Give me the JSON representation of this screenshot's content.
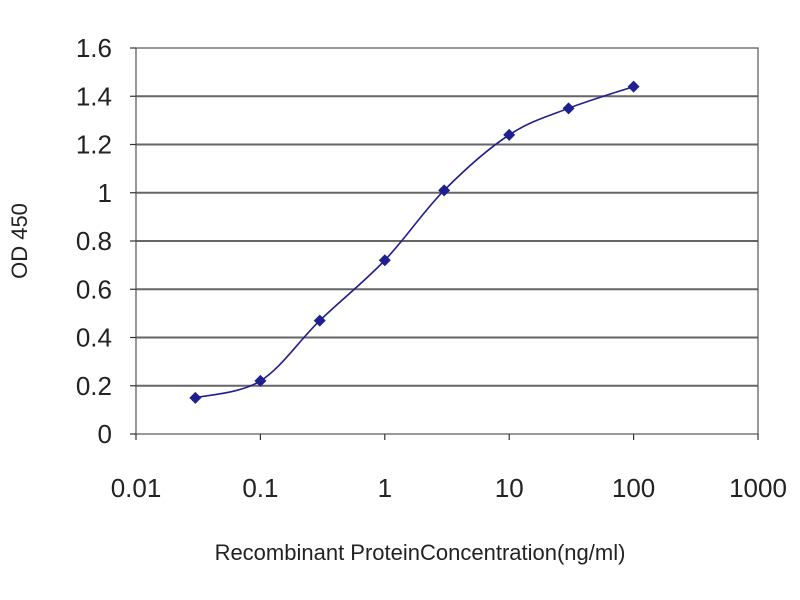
{
  "chart_data": {
    "type": "scatter",
    "title": "",
    "xlabel": "Recombinant ProteinConcentration(ng/ml)",
    "ylabel": "OD 450",
    "x_scale": "log",
    "xlim": [
      0.01,
      1000
    ],
    "ylim": [
      0,
      1.6
    ],
    "x_ticks": [
      0.01,
      0.1,
      1,
      10,
      100,
      1000
    ],
    "x_tick_labels": [
      "0.01",
      "0.1",
      "1",
      "10",
      "100",
      "1000"
    ],
    "y_ticks": [
      0,
      0.2,
      0.4,
      0.6,
      0.8,
      1,
      1.2,
      1.4,
      1.6
    ],
    "y_tick_labels": [
      "0",
      "0.2",
      "0.4",
      "0.6",
      "0.8",
      "1",
      "1.2",
      "1.4",
      "1.6"
    ],
    "grid": "horizontal",
    "legend": "none",
    "series": [
      {
        "x": [
          0.03,
          0.1,
          0.3,
          1,
          3,
          10,
          30,
          100
        ],
        "y": [
          0.15,
          0.22,
          0.47,
          0.72,
          1.01,
          1.24,
          1.35,
          1.44
        ],
        "marker": "diamond",
        "connected": true
      }
    ],
    "colors": {
      "series": "#1f1f8f",
      "grid": "#666666",
      "axis": "#333333"
    }
  }
}
